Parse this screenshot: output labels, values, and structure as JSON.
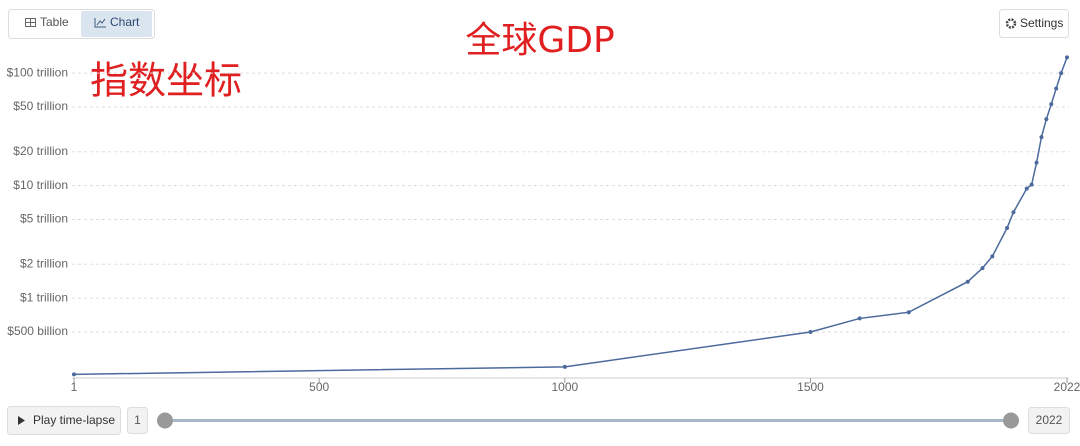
{
  "ui": {
    "tabs": [
      "Table",
      "Chart"
    ],
    "settings": "Settings",
    "play": "Play time-lapse"
  },
  "chart_data": {
    "type": "line",
    "title": "全球GDP",
    "annotation": "指数坐标",
    "log_scale": true,
    "grid": true,
    "x": [
      1,
      1000,
      1500,
      1600,
      1700,
      1820,
      1850,
      1870,
      1900,
      1913,
      1940,
      1950,
      1960,
      1970,
      1980,
      1990,
      2000,
      2010,
      2022
    ],
    "series": [
      {
        "color": "#4c6a9c",
        "values": [
          210000000000,
          245000000000,
          500000000000,
          660000000000,
          750000000000,
          1400000000000,
          1850000000000,
          2350000000000,
          4200000000000,
          5800000000000,
          9400000000000,
          10200000000000,
          16000000000000,
          27000000000000,
          39000000000000,
          53000000000000,
          73000000000000,
          100000000000000,
          138000000000000
        ]
      }
    ],
    "xlim": [
      1,
      2022
    ],
    "xticks": [
      1,
      500,
      1000,
      1500,
      2022
    ],
    "ylim": [
      195000000000,
      145000000000000
    ],
    "yticks": [
      {
        "value": 500000000000,
        "label": "$500 billion"
      },
      {
        "value": 1000000000000,
        "label": "$1 trillion"
      },
      {
        "value": 2000000000000,
        "label": "$2 trillion"
      },
      {
        "value": 5000000000000,
        "label": "$5 trillion"
      },
      {
        "value": 10000000000000,
        "label": "$10 trillion"
      },
      {
        "value": 20000000000000,
        "label": "$20 trillion"
      },
      {
        "value": 50000000000000,
        "label": "$50 trillion"
      },
      {
        "value": 100000000000000,
        "label": "$100 trillion"
      }
    ]
  }
}
